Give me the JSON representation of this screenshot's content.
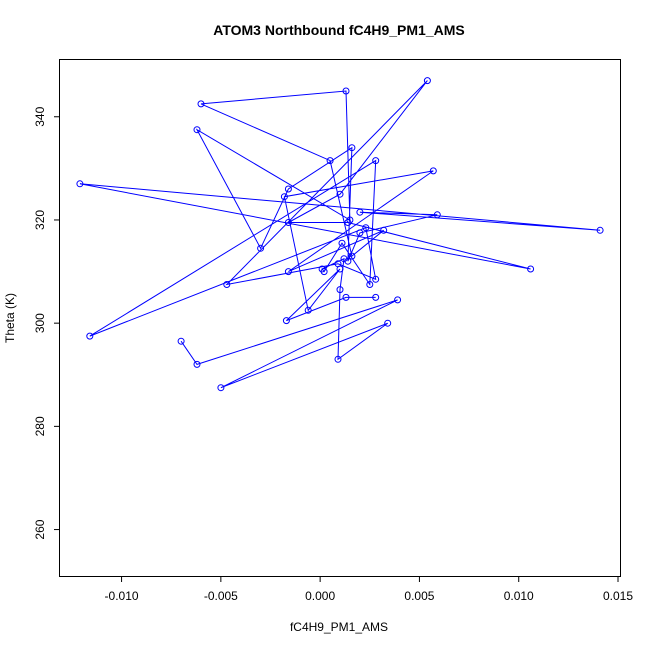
{
  "chart_data": {
    "type": "line",
    "title": "ATOM3 Northbound fC4H9_PM1_AMS",
    "xlabel": "fC4H9_PM1_AMS",
    "ylabel": "Theta (K)",
    "xlim": [
      -0.0131,
      0.0151
    ],
    "ylim": [
      251,
      351
    ],
    "xticks": [
      -0.01,
      -0.005,
      0.0,
      0.005,
      0.01,
      0.015
    ],
    "xtick_labels": [
      "-0.010",
      "-0.005",
      "0.000",
      "0.005",
      "0.010",
      "0.015"
    ],
    "yticks": [
      260,
      280,
      300,
      320,
      340
    ],
    "ytick_labels": [
      "260",
      "280",
      "300",
      "320",
      "340"
    ],
    "grid": false,
    "markers": "open-circle",
    "color": "#0000ff",
    "x": [
      -0.007,
      -0.0062,
      0.0039,
      -0.005,
      0.0034,
      0.0009,
      0.001,
      0.0012,
      0.0001,
      0.0002,
      0.0011,
      0.0025,
      0.0028,
      -0.0116,
      0.0023,
      0.0028,
      0.0009,
      -0.0047,
      0.0054,
      0.001,
      -0.0016,
      0.0014,
      0.0106,
      -0.0121,
      0.0141,
      0.002,
      0.0059,
      0.002,
      0.0014,
      0.0016,
      -0.0016,
      -0.003,
      -0.0062,
      0.0015,
      0.0013,
      -0.006,
      0.0005,
      0.0016,
      0.0032,
      -0.0016,
      0.0057,
      -0.0018,
      -0.0006,
      0.001,
      -0.0017,
      0.0013,
      0.0028
    ],
    "y": [
      296.5,
      292.0,
      304.5,
      287.5,
      300.0,
      293.0,
      306.5,
      312.5,
      310.5,
      310.0,
      315.5,
      307.5,
      331.5,
      297.5,
      318.5,
      308.5,
      311.5,
      307.5,
      347.0,
      325.0,
      319.5,
      319.5,
      310.5,
      327.0,
      318.0,
      321.5,
      321.0,
      317.5,
      312.0,
      334.0,
      326.0,
      314.5,
      337.5,
      320.0,
      345.0,
      342.5,
      331.5,
      313.0,
      318.0,
      310.0,
      329.5,
      324.5,
      302.5,
      310.5,
      300.5,
      305.0,
      305.0
    ]
  }
}
